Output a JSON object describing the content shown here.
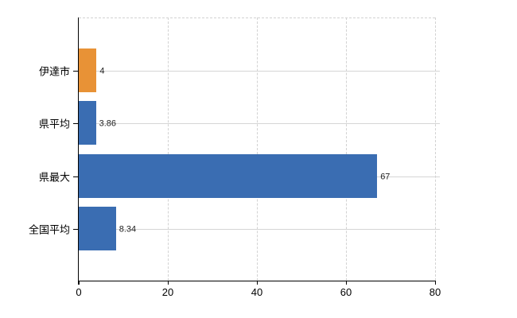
{
  "chart_data": {
    "type": "bar",
    "orientation": "horizontal",
    "title": "",
    "categories": [
      "伊達市",
      "県平均",
      "県最大",
      "全国平均"
    ],
    "values": [
      4,
      3.86,
      67,
      8.34
    ],
    "value_labels": [
      "4",
      "3.86",
      "67",
      "8.34"
    ],
    "bar_colors": [
      "#e89236",
      "#3a6db2",
      "#3a6db2",
      "#3a6db2"
    ],
    "xlim": [
      0,
      80
    ],
    "x_ticks": [
      {
        "value": 0,
        "label": "0"
      },
      {
        "value": 20,
        "label": "20"
      },
      {
        "value": 40,
        "label": "40"
      },
      {
        "value": 60,
        "label": "60"
      },
      {
        "value": 80,
        "label": "80"
      }
    ],
    "grid": {
      "vertical": "dashed",
      "horizontal": "solid"
    },
    "legend_position": "none",
    "xlabel": "",
    "ylabel": ""
  },
  "colors": {
    "bar_orange": "#e89236",
    "bar_blue": "#3a6db2",
    "gridline": "#d5d5d5",
    "axis": "#000000",
    "category_text": "#000000",
    "value_text": "#222222",
    "background": "#ffffff"
  }
}
